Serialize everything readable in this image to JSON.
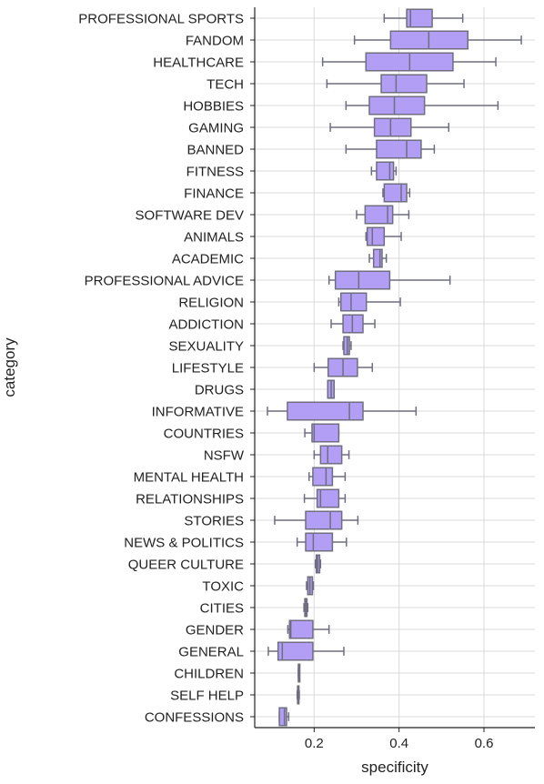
{
  "chart_data": {
    "type": "boxplot",
    "orientation": "horizontal",
    "xlabel": "specificity",
    "ylabel": "category",
    "xlim": [
      0.06,
      0.72
    ],
    "xticks": [
      0.2,
      0.4,
      0.6
    ],
    "xtick_labels": [
      "0.2",
      "0.4",
      "0.6"
    ],
    "grid": "vertical",
    "box_color": "#b39ef5",
    "edge_color": "#6e6e80",
    "boxes": [
      {
        "category": "PROFESSIONAL SPORTS",
        "whisker_low": 0.365,
        "q1": 0.418,
        "median": 0.427,
        "q3": 0.478,
        "whisker_high": 0.55
      },
      {
        "category": "FANDOM",
        "whisker_low": 0.295,
        "q1": 0.38,
        "median": 0.47,
        "q3": 0.562,
        "whisker_high": 0.688
      },
      {
        "category": "HEALTHCARE",
        "whisker_low": 0.22,
        "q1": 0.322,
        "median": 0.425,
        "q3": 0.527,
        "whisker_high": 0.628
      },
      {
        "category": "TECH",
        "whisker_low": 0.23,
        "q1": 0.358,
        "median": 0.393,
        "q3": 0.465,
        "whisker_high": 0.553
      },
      {
        "category": "HOBBIES",
        "whisker_low": 0.275,
        "q1": 0.33,
        "median": 0.389,
        "q3": 0.46,
        "whisker_high": 0.633
      },
      {
        "category": "GAMING",
        "whisker_low": 0.238,
        "q1": 0.342,
        "median": 0.38,
        "q3": 0.428,
        "whisker_high": 0.517
      },
      {
        "category": "BANNED",
        "whisker_low": 0.275,
        "q1": 0.347,
        "median": 0.418,
        "q3": 0.452,
        "whisker_high": 0.483
      },
      {
        "category": "FITNESS",
        "whisker_low": 0.335,
        "q1": 0.347,
        "median": 0.378,
        "q3": 0.387,
        "whisker_high": 0.393
      },
      {
        "category": "FINANCE",
        "whisker_low": 0.362,
        "q1": 0.365,
        "median": 0.405,
        "q3": 0.418,
        "whisker_high": 0.425
      },
      {
        "category": "SOFTWARE DEV",
        "whisker_low": 0.3,
        "q1": 0.32,
        "median": 0.373,
        "q3": 0.385,
        "whisker_high": 0.423
      },
      {
        "category": "ANIMALS",
        "whisker_low": 0.322,
        "q1": 0.325,
        "median": 0.337,
        "q3": 0.365,
        "whisker_high": 0.405
      },
      {
        "category": "ACADEMIC",
        "whisker_low": 0.33,
        "q1": 0.34,
        "median": 0.355,
        "q3": 0.36,
        "whisker_high": 0.37
      },
      {
        "category": "PROFESSIONAL ADVICE",
        "whisker_low": 0.235,
        "q1": 0.25,
        "median": 0.305,
        "q3": 0.378,
        "whisker_high": 0.52
      },
      {
        "category": "RELIGION",
        "whisker_low": 0.258,
        "q1": 0.263,
        "median": 0.287,
        "q3": 0.323,
        "whisker_high": 0.403
      },
      {
        "category": "ADDICTION",
        "whisker_low": 0.24,
        "q1": 0.268,
        "median": 0.29,
        "q3": 0.315,
        "whisker_high": 0.343
      },
      {
        "category": "SEXUALITY",
        "whisker_low": 0.268,
        "q1": 0.27,
        "median": 0.278,
        "q3": 0.283,
        "whisker_high": 0.287
      },
      {
        "category": "LIFESTYLE",
        "whisker_low": 0.2,
        "q1": 0.233,
        "median": 0.268,
        "q3": 0.302,
        "whisker_high": 0.337
      },
      {
        "category": "DRUGS",
        "whisker_low": 0.232,
        "q1": 0.232,
        "median": 0.24,
        "q3": 0.247,
        "whisker_high": 0.247
      },
      {
        "category": "INFORMATIVE",
        "whisker_low": 0.09,
        "q1": 0.137,
        "median": 0.283,
        "q3": 0.315,
        "whisker_high": 0.44
      },
      {
        "category": "COUNTRIES",
        "whisker_low": 0.178,
        "q1": 0.195,
        "median": 0.2,
        "q3": 0.258,
        "whisker_high": 0.258
      },
      {
        "category": "NSFW",
        "whisker_low": 0.2,
        "q1": 0.215,
        "median": 0.232,
        "q3": 0.265,
        "whisker_high": 0.282
      },
      {
        "category": "MENTAL HEALTH",
        "whisker_low": 0.188,
        "q1": 0.197,
        "median": 0.228,
        "q3": 0.243,
        "whisker_high": 0.273
      },
      {
        "category": "RELATIONSHIPS",
        "whisker_low": 0.177,
        "q1": 0.207,
        "median": 0.215,
        "q3": 0.258,
        "whisker_high": 0.273
      },
      {
        "category": "STORIES",
        "whisker_low": 0.107,
        "q1": 0.18,
        "median": 0.238,
        "q3": 0.265,
        "whisker_high": 0.303
      },
      {
        "category": "NEWS & POLITICS",
        "whisker_low": 0.16,
        "q1": 0.18,
        "median": 0.198,
        "q3": 0.243,
        "whisker_high": 0.276
      },
      {
        "category": "QUEER CULTURE",
        "whisker_low": 0.203,
        "q1": 0.205,
        "median": 0.208,
        "q3": 0.213,
        "whisker_high": 0.215
      },
      {
        "category": "TOXIC",
        "whisker_low": 0.182,
        "q1": 0.185,
        "median": 0.19,
        "q3": 0.196,
        "whisker_high": 0.198
      },
      {
        "category": "CITIES",
        "whisker_low": 0.176,
        "q1": 0.178,
        "median": 0.18,
        "q3": 0.183,
        "whisker_high": 0.185
      },
      {
        "category": "GENDER",
        "whisker_low": 0.138,
        "q1": 0.142,
        "median": 0.145,
        "q3": 0.197,
        "whisker_high": 0.235
      },
      {
        "category": "GENERAL",
        "whisker_low": 0.092,
        "q1": 0.115,
        "median": 0.125,
        "q3": 0.197,
        "whisker_high": 0.27
      },
      {
        "category": "CHILDREN",
        "whisker_low": 0.163,
        "q1": 0.163,
        "median": 0.163,
        "q3": 0.163,
        "whisker_high": 0.163
      },
      {
        "category": "SELF HELP",
        "whisker_low": 0.16,
        "q1": 0.161,
        "median": 0.162,
        "q3": 0.164,
        "whisker_high": 0.165
      },
      {
        "category": "CONFESSIONS",
        "whisker_low": 0.118,
        "q1": 0.118,
        "median": 0.13,
        "q3": 0.135,
        "whisker_high": 0.14
      }
    ]
  }
}
